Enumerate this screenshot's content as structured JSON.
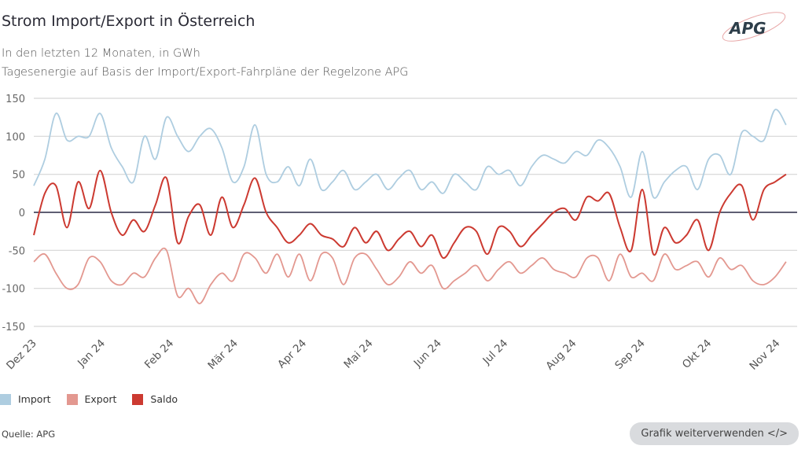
{
  "header": {
    "title": "Strom Import/Export in Österreich",
    "subtitle1": "In den letzten 12 Monaten, in GWh",
    "subtitle2": "Tagesenergie auf Basis der Import/Export-Fahrpläne der Regelzone APG",
    "logo": "APG"
  },
  "footer": {
    "source": "Quelle: APG",
    "reuse_button": "Grafik weiterverwenden </>"
  },
  "colors": {
    "import": "#aecde0",
    "export": "#e39890",
    "saldo": "#cc3a31",
    "zero": "#2a2a45"
  },
  "chart_data": {
    "type": "line",
    "title": "Strom Import/Export in Österreich",
    "ylabel": "GWh",
    "xlabel": "",
    "ylim": [
      -150,
      150
    ],
    "yticks": [
      150,
      100,
      50,
      0,
      -50,
      -100,
      -150
    ],
    "xlim_days": [
      0,
      345
    ],
    "xticks": [
      {
        "day": 0,
        "label": "Dez 23"
      },
      {
        "day": 31,
        "label": "Jan 24"
      },
      {
        "day": 62,
        "label": "Feb 24"
      },
      {
        "day": 91,
        "label": "Mär 24"
      },
      {
        "day": 122,
        "label": "Apr 24"
      },
      {
        "day": 152,
        "label": "Mai 24"
      },
      {
        "day": 183,
        "label": "Jun 24"
      },
      {
        "day": 213,
        "label": "Jul 24"
      },
      {
        "day": 244,
        "label": "Aug 24"
      },
      {
        "day": 275,
        "label": "Sep 24"
      },
      {
        "day": 305,
        "label": "Okt 24"
      },
      {
        "day": 336,
        "label": "Nov 24"
      }
    ],
    "x_step_days": 5,
    "legend": "bottom-left",
    "series": [
      {
        "name": "Import",
        "key": "import",
        "values": [
          35,
          70,
          130,
          95,
          100,
          100,
          130,
          85,
          60,
          40,
          100,
          70,
          125,
          100,
          80,
          100,
          110,
          85,
          40,
          60,
          115,
          50,
          40,
          60,
          35,
          70,
          30,
          40,
          55,
          30,
          40,
          50,
          30,
          45,
          55,
          30,
          40,
          25,
          50,
          40,
          30,
          60,
          50,
          55,
          35,
          60,
          75,
          70,
          65,
          80,
          75,
          95,
          85,
          60,
          20,
          80,
          20,
          40,
          55,
          60,
          30,
          70,
          75,
          50,
          105,
          100,
          95,
          135,
          115
        ]
      },
      {
        "name": "Export",
        "key": "export",
        "values": [
          -65,
          -55,
          -80,
          -100,
          -95,
          -60,
          -65,
          -90,
          -95,
          -80,
          -85,
          -60,
          -50,
          -110,
          -100,
          -120,
          -95,
          -80,
          -90,
          -55,
          -60,
          -80,
          -55,
          -85,
          -55,
          -90,
          -55,
          -60,
          -95,
          -60,
          -55,
          -75,
          -95,
          -85,
          -65,
          -80,
          -70,
          -100,
          -90,
          -80,
          -70,
          -90,
          -75,
          -65,
          -80,
          -70,
          -60,
          -75,
          -80,
          -85,
          -60,
          -60,
          -90,
          -55,
          -85,
          -80,
          -90,
          -55,
          -75,
          -70,
          -65,
          -85,
          -60,
          -75,
          -70,
          -90,
          -95,
          -85,
          -65
        ]
      },
      {
        "name": "Saldo",
        "key": "saldo",
        "values": [
          -30,
          25,
          35,
          -20,
          40,
          5,
          55,
          0,
          -30,
          -10,
          -25,
          10,
          45,
          -40,
          -5,
          10,
          -30,
          20,
          -20,
          10,
          45,
          0,
          -20,
          -40,
          -30,
          -15,
          -30,
          -35,
          -45,
          -20,
          -40,
          -25,
          -50,
          -35,
          -25,
          -45,
          -30,
          -60,
          -40,
          -20,
          -25,
          -55,
          -20,
          -25,
          -45,
          -30,
          -15,
          0,
          5,
          -10,
          20,
          15,
          25,
          -20,
          -50,
          30,
          -55,
          -20,
          -40,
          -30,
          -10,
          -50,
          0,
          25,
          35,
          -10,
          30,
          40,
          50
        ]
      }
    ]
  }
}
